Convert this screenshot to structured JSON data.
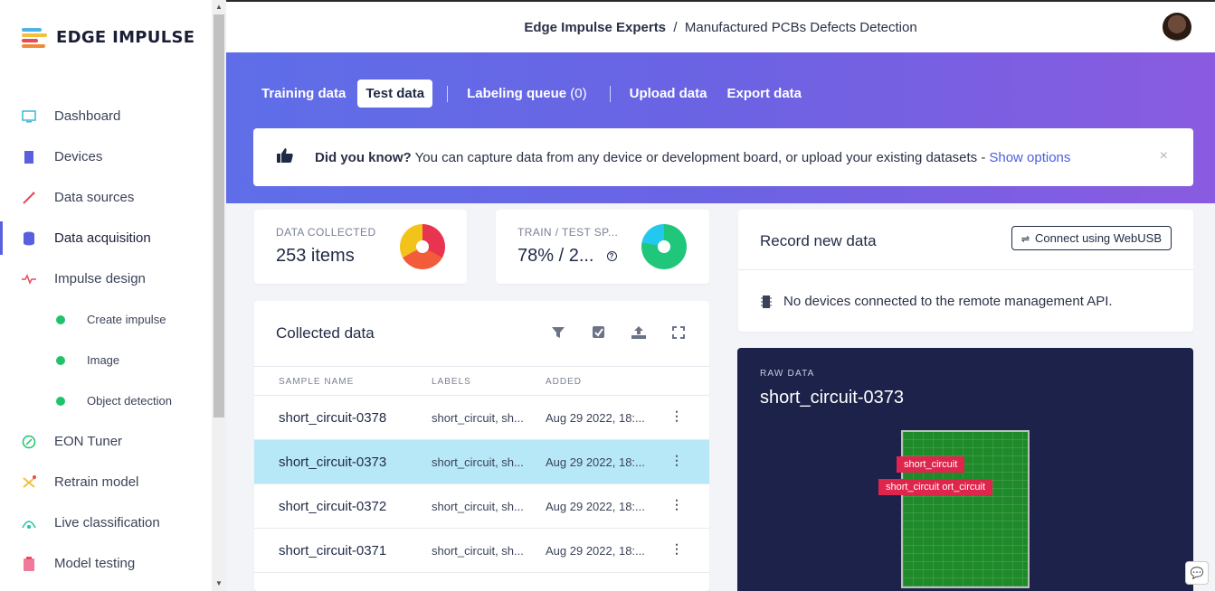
{
  "brand": {
    "name": "EDGE IMPULSE"
  },
  "breadcrumb": {
    "org": "Edge Impulse Experts",
    "separator": "/",
    "project": "Manufactured PCBs Defects Detection"
  },
  "sidebar": {
    "items": [
      {
        "label": "Dashboard",
        "icon": "monitor-icon"
      },
      {
        "label": "Devices",
        "icon": "chip-icon"
      },
      {
        "label": "Data sources",
        "icon": "wand-icon"
      },
      {
        "label": "Data acquisition",
        "icon": "database-icon",
        "active": true
      },
      {
        "label": "Impulse design",
        "icon": "pulse-icon"
      },
      {
        "label": "Create impulse",
        "sub": true
      },
      {
        "label": "Image",
        "sub": true
      },
      {
        "label": "Object detection",
        "sub": true
      },
      {
        "label": "EON Tuner",
        "icon": "compass-icon"
      },
      {
        "label": "Retrain model",
        "icon": "shuffle-icon"
      },
      {
        "label": "Live classification",
        "icon": "signal-icon"
      },
      {
        "label": "Model testing",
        "icon": "clipboard-icon"
      }
    ]
  },
  "tabs": [
    {
      "label": "Training data"
    },
    {
      "label": "Test data",
      "active": true
    },
    {
      "label": "Labeling queue",
      "count": "(0)"
    },
    {
      "label": "Upload data"
    },
    {
      "label": "Export data"
    }
  ],
  "tip": {
    "bold": "Did you know?",
    "text": "You can capture data from any device or development board, or upload your existing datasets -",
    "link": "Show options",
    "close": "×"
  },
  "stats": {
    "collected": {
      "label": "DATA COLLECTED",
      "value": "253 items"
    },
    "split": {
      "label": "TRAIN / TEST SP...",
      "value": "78% / 2...",
      "help": "?"
    }
  },
  "collected": {
    "title": "Collected data",
    "columns": [
      "SAMPLE NAME",
      "LABELS",
      "ADDED"
    ],
    "rows": [
      {
        "name": "short_circuit-0378",
        "labels": "short_circuit, sh...",
        "added": "Aug 29 2022, 18:..."
      },
      {
        "name": "short_circuit-0373",
        "labels": "short_circuit, sh...",
        "added": "Aug 29 2022, 18:...",
        "selected": true
      },
      {
        "name": "short_circuit-0372",
        "labels": "short_circuit, sh...",
        "added": "Aug 29 2022, 18:..."
      },
      {
        "name": "short_circuit-0371",
        "labels": "short_circuit, sh...",
        "added": "Aug 29 2022, 18:..."
      }
    ]
  },
  "record": {
    "title": "Record new data",
    "button": "Connect using WebUSB",
    "message": "No devices connected to the remote management API."
  },
  "raw": {
    "label": "RAW DATA",
    "title": "short_circuit-0373",
    "boxes": [
      "short_circuit",
      "short_circuit ort_circuit"
    ]
  },
  "colors": {
    "accent": "#5a5fe0",
    "selected_row": "#b7e8f7",
    "bbox": "#e0254d"
  }
}
